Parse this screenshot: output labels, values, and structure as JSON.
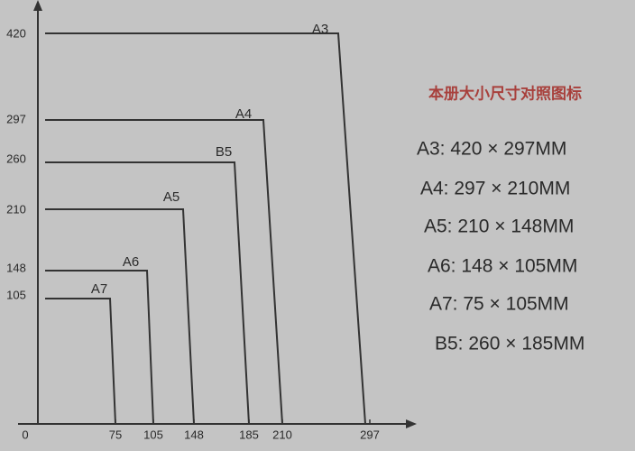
{
  "axes": {
    "origin": "0",
    "x_labels": [
      "75",
      "105",
      "148",
      "185",
      "210",
      "297"
    ],
    "y_labels": [
      "420",
      "297",
      "260",
      "210",
      "148",
      "105"
    ]
  },
  "boxes": [
    {
      "label": "A3"
    },
    {
      "label": "A4"
    },
    {
      "label": "B5"
    },
    {
      "label": "A5"
    },
    {
      "label": "A6"
    },
    {
      "label": "A7"
    }
  ],
  "legend": {
    "title": "本册大小尺寸对照图标",
    "items": [
      "A3: 420 × 297MM",
      "A4: 297 × 210MM",
      "A5: 210 × 148MM",
      "A6: 148 × 105MM",
      "A7: 75 × 105MM",
      "B5: 260 × 185MM"
    ]
  }
}
